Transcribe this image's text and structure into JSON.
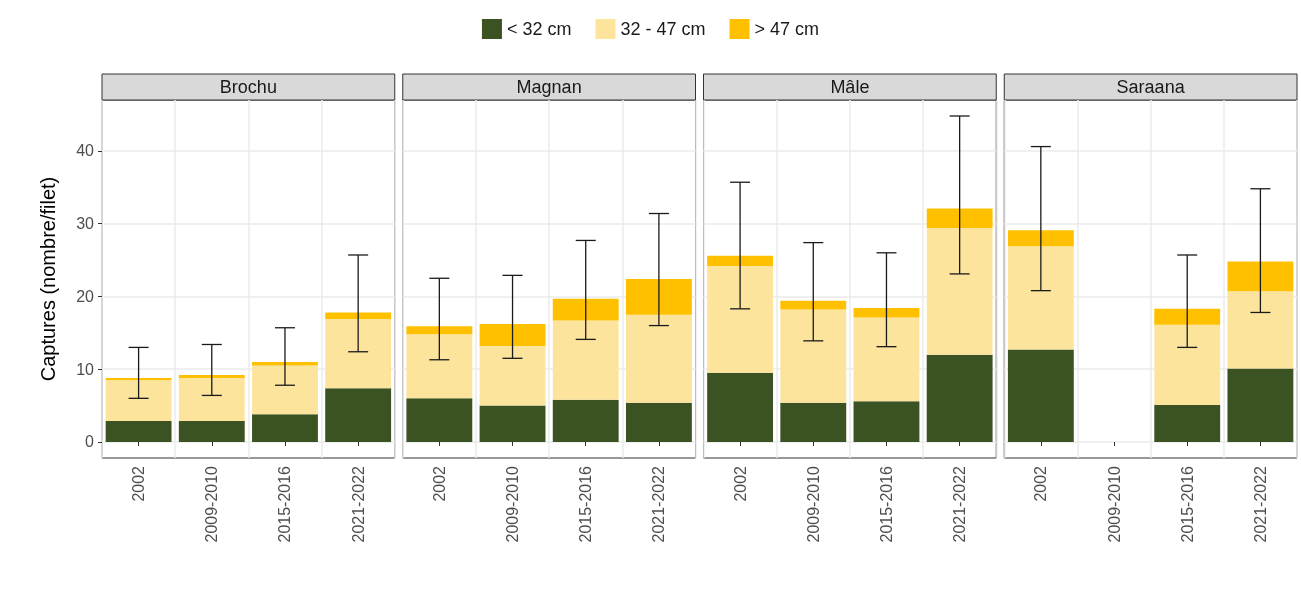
{
  "chart_data": [
    {
      "type": "bar",
      "title": "Brochu",
      "ylabel": "Captures (nombre/filet)",
      "categories": [
        "2002",
        "2009-2010",
        "2015-2016",
        "2021-2022"
      ],
      "stacked": true,
      "ylim": [
        -2.2,
        47
      ],
      "yticks": [
        0,
        10,
        20,
        30,
        40
      ],
      "grid": true,
      "legend": "top",
      "series": [
        {
          "name": "< 32 cm",
          "color": "#3b5323",
          "values": [
            2.9,
            2.9,
            3.8,
            7.4
          ]
        },
        {
          "name": "32 - 47 cm",
          "color": "#fde49c",
          "values": [
            5.6,
            5.9,
            6.7,
            9.5
          ]
        },
        {
          "name": "> 47 cm",
          "color": "#ffc000",
          "values": [
            0.3,
            0.4,
            0.5,
            0.9
          ],
          "errors": [
            [
              6.0,
              13.0
            ],
            [
              6.4,
              13.4
            ],
            [
              7.8,
              15.7
            ],
            [
              12.4,
              25.7
            ]
          ]
        }
      ]
    },
    {
      "type": "bar",
      "title": "Magnan",
      "categories": [
        "2002",
        "2009-2010",
        "2015-2016",
        "2021-2022"
      ],
      "stacked": true,
      "ylim": [
        -2.2,
        47
      ],
      "yticks": [
        0,
        10,
        20,
        30,
        40
      ],
      "grid": true,
      "tick_labels": "x",
      "series": [
        {
          "color": "#3b5323",
          "values": [
            6.0,
            5.0,
            5.8,
            5.4
          ]
        },
        {
          "color": "#fde49c",
          "values": [
            8.8,
            8.2,
            10.9,
            12.1
          ]
        },
        {
          "color": "#ffc000",
          "values": [
            1.1,
            3.0,
            3.0,
            4.9
          ],
          "errors": [
            [
              11.3,
              22.5
            ],
            [
              11.5,
              22.9
            ],
            [
              14.1,
              27.7
            ],
            [
              16.0,
              31.4
            ]
          ]
        }
      ]
    },
    {
      "type": "bar",
      "title": "Mâle",
      "categories": [
        "2002",
        "2009-2010",
        "2015-2016",
        "2021-2022"
      ],
      "stacked": true,
      "ylim": [
        -2.2,
        47
      ],
      "yticks": [
        0,
        10,
        20,
        30,
        40
      ],
      "grid": true,
      "tick_labels": "x",
      "series": [
        {
          "color": "#3b5323",
          "values": [
            9.5,
            5.4,
            5.6,
            12.0
          ]
        },
        {
          "color": "#fde49c",
          "values": [
            14.7,
            12.8,
            11.5,
            17.4
          ]
        },
        {
          "color": "#ffc000",
          "values": [
            1.4,
            1.2,
            1.3,
            2.7
          ],
          "errors": [
            [
              18.3,
              35.7
            ],
            [
              13.9,
              27.4
            ],
            [
              13.1,
              26.0
            ],
            [
              23.1,
              44.8
            ]
          ]
        }
      ]
    },
    {
      "type": "bar",
      "title": "Saraana",
      "categories": [
        "2002",
        "2009-2010",
        "2015-2016",
        "2021-2022"
      ],
      "stacked": true,
      "ylim": [
        -2.2,
        47
      ],
      "yticks": [
        0,
        10,
        20,
        30,
        40
      ],
      "grid": true,
      "tick_labels": "x",
      "series": [
        {
          "color": "#3b5323",
          "values": [
            12.7,
            null,
            5.1,
            10.1
          ]
        },
        {
          "color": "#fde49c",
          "values": [
            14.2,
            null,
            11.0,
            10.6
          ]
        },
        {
          "color": "#ffc000",
          "values": [
            2.2,
            null,
            2.2,
            4.1
          ],
          "errors": [
            [
              20.8,
              40.6
            ],
            null,
            [
              13.0,
              25.7
            ],
            [
              17.8,
              34.8
            ]
          ]
        }
      ]
    }
  ]
}
